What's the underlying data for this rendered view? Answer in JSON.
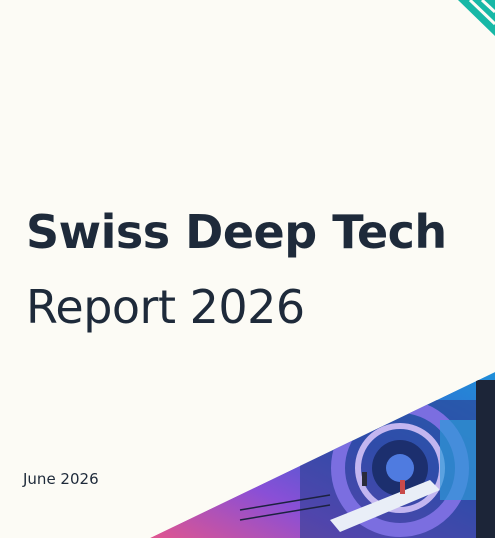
{
  "cover": {
    "title_line1": "Swiss Deep Tech",
    "title_line2": "Report 2026",
    "date": "June 2026"
  }
}
